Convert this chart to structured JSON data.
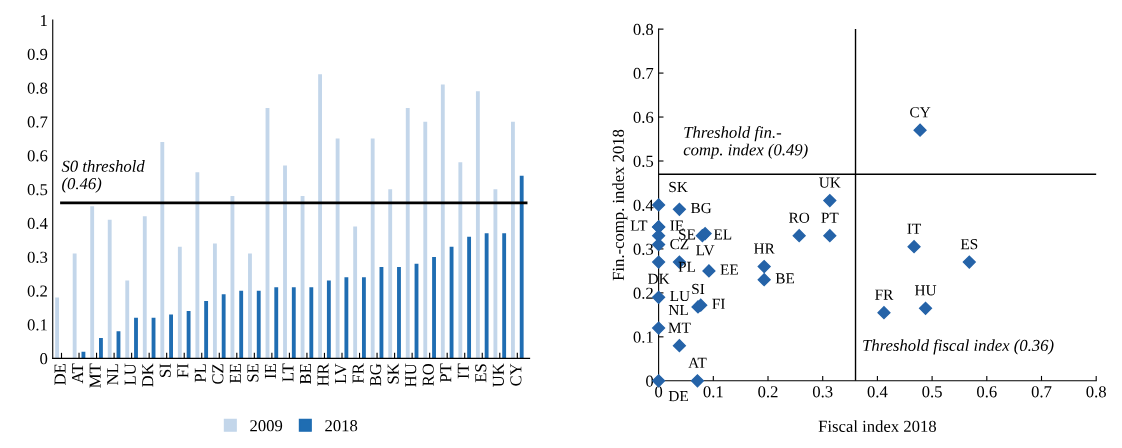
{
  "chart_data": [
    {
      "type": "bar",
      "categories": [
        "DE",
        "AT",
        "MT",
        "NL",
        "LU",
        "DK",
        "SI",
        "FI",
        "PL",
        "CZ",
        "EE",
        "SE",
        "IE",
        "LT",
        "BE",
        "HR",
        "LV",
        "FR",
        "BG",
        "SK",
        "HU",
        "RO",
        "PT",
        "IT",
        "ES",
        "UK",
        "CY"
      ],
      "series": [
        {
          "name": "2009",
          "color": "#c3d6ea",
          "values": [
            0.18,
            0.31,
            0.45,
            0.41,
            0.23,
            0.42,
            0.64,
            0.33,
            0.55,
            0.34,
            0.48,
            0.31,
            0.74,
            0.57,
            0.48,
            0.84,
            0.65,
            0.39,
            0.65,
            0.5,
            0.74,
            0.7,
            0.81,
            0.58,
            0.79,
            0.5,
            0.7
          ]
        },
        {
          "name": "2018",
          "color": "#1f6db2",
          "values": [
            0,
            0.02,
            0.06,
            0.08,
            0.12,
            0.12,
            0.13,
            0.14,
            0.17,
            0.19,
            0.2,
            0.2,
            0.21,
            0.21,
            0.21,
            0.23,
            0.24,
            0.24,
            0.27,
            0.27,
            0.28,
            0.3,
            0.33,
            0.36,
            0.37,
            0.37,
            0.54
          ]
        }
      ],
      "ylim": [
        0,
        1
      ],
      "yticks": [
        0,
        0.1,
        0.2,
        0.3,
        0.4,
        0.5,
        0.6,
        0.7,
        0.8,
        0.9,
        1
      ],
      "ref_lines": [
        {
          "axis": "y",
          "value": 0.46,
          "label": "S0 threshold\n(0.46)",
          "color": "#000000"
        }
      ],
      "legend": "bottom",
      "grid": false
    },
    {
      "type": "scatter",
      "xlabel": "Fiscal index 2018",
      "ylabel": "Fin.-comp. index 2018",
      "marker": "diamond",
      "series": [
        {
          "color": "#2563a8",
          "x": [
            0,
            0.038,
            0.08,
            0.085,
            0.038,
            0.092,
            0.193,
            0.193,
            0.257,
            0.313,
            0.313,
            0.478,
            0.467,
            0.568,
            0.412,
            0.488,
            0.038,
            0.071,
            0,
            0,
            0.072,
            0.077,
            0,
            0,
            0,
            0,
            0,
            0
          ],
          "values": [
            0.4,
            0.39,
            0.33,
            0.335,
            0.27,
            0.25,
            0.26,
            0.23,
            0.33,
            0.33,
            0.41,
            0.57,
            0.305,
            0.27,
            0.155,
            0.165,
            0.08,
            0,
            0,
            0.12,
            0.168,
            0.172,
            0.35,
            0.35,
            0.33,
            0.31,
            0.27,
            0.19
          ]
        }
      ],
      "xlim": [
        0,
        0.8
      ],
      "xticks": [
        0,
        0.1,
        0.2,
        0.3,
        0.4,
        0.5,
        0.6,
        0.7,
        0.8
      ],
      "ylim": [
        0,
        0.8
      ],
      "yticks": [
        0,
        0.1,
        0.2,
        0.3,
        0.4,
        0.5,
        0.6,
        0.7,
        0.8
      ],
      "ref_lines": [
        {
          "axis": "x",
          "value": 0.36,
          "label": "Threshold fiscal index (0.36)",
          "color": "#000000"
        },
        {
          "axis": "y",
          "value": 0.47,
          "label": "Threshold fin.-\ncomp. index (0.49)",
          "color": "#000000"
        }
      ],
      "annotations": [
        {
          "text": "SK",
          "x": 0,
          "y": 0.4
        },
        {
          "text": "BG",
          "x": 0.038,
          "y": 0.39
        },
        {
          "text": "EL",
          "x": 0.08,
          "y": 0.33
        },
        {
          "text": "LV",
          "x": 0.085,
          "y": 0.335
        },
        {
          "text": "CZ",
          "x": 0.038,
          "y": 0.27
        },
        {
          "text": "EE",
          "x": 0.092,
          "y": 0.25
        },
        {
          "text": "HR",
          "x": 0.193,
          "y": 0.26
        },
        {
          "text": "BE",
          "x": 0.193,
          "y": 0.23
        },
        {
          "text": "RO",
          "x": 0.257,
          "y": 0.33
        },
        {
          "text": "PT",
          "x": 0.313,
          "y": 0.33
        },
        {
          "text": "UK",
          "x": 0.313,
          "y": 0.41
        },
        {
          "text": "CY",
          "x": 0.478,
          "y": 0.57
        },
        {
          "text": "IT",
          "x": 0.467,
          "y": 0.305
        },
        {
          "text": "ES",
          "x": 0.568,
          "y": 0.27
        },
        {
          "text": "FR",
          "x": 0.412,
          "y": 0.155
        },
        {
          "text": "HU",
          "x": 0.488,
          "y": 0.165
        },
        {
          "text": "MT",
          "x": 0.038,
          "y": 0.08
        },
        {
          "text": "AT",
          "x": 0.071,
          "y": 0
        },
        {
          "text": "DE",
          "x": 0,
          "y": 0
        },
        {
          "text": "NL",
          "x": 0,
          "y": 0.12
        },
        {
          "text": "SI",
          "x": 0.072,
          "y": 0.168
        },
        {
          "text": "FI",
          "x": 0.077,
          "y": 0.172
        },
        {
          "text": "IE",
          "x": 0,
          "y": 0.35
        },
        {
          "text": "LT",
          "x": 0,
          "y": 0.35
        },
        {
          "text": "SE",
          "x": 0,
          "y": 0.33
        },
        {
          "text": "PL",
          "x": 0,
          "y": 0.31
        },
        {
          "text": "DK",
          "x": 0,
          "y": 0.27
        },
        {
          "text": "LU",
          "x": 0,
          "y": 0.19
        }
      ],
      "grid": false
    }
  ]
}
